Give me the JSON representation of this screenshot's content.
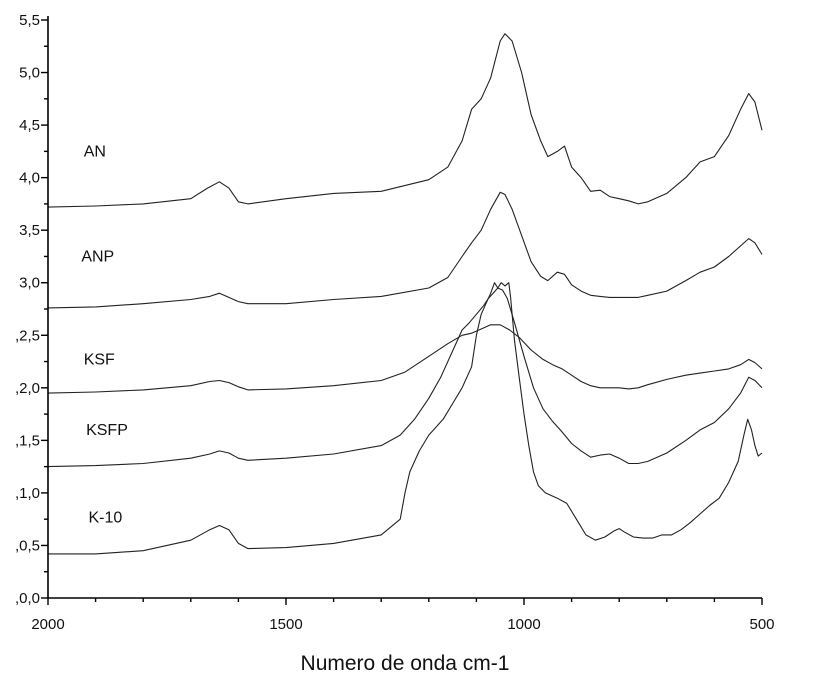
{
  "chart_data": {
    "type": "line",
    "title": "",
    "xlabel": "Numero de onda cm-1",
    "ylabel": "",
    "xlim": [
      2000,
      500
    ],
    "ylim": [
      0.0,
      5.5
    ],
    "x_ticks": [
      2000,
      1500,
      1000,
      500
    ],
    "x_tick_labels": [
      "2000",
      "1500",
      "1000",
      "500"
    ],
    "y_ticks": [
      0.0,
      0.5,
      1.0,
      1.5,
      2.0,
      2.5,
      3.0,
      3.5,
      4.0,
      4.5,
      5.0,
      5.5
    ],
    "y_tick_labels": [
      ",0,0",
      ",0,5",
      ",1,0",
      ",1,5",
      ",2,0",
      ",2,5",
      "3,0",
      "3,5",
      "4,0",
      "4,5",
      "5,0",
      "5,5"
    ],
    "series": [
      {
        "name": "AN",
        "label_pos": [
          1925,
          4.2
        ],
        "points": [
          [
            2000,
            3.72
          ],
          [
            1900,
            3.73
          ],
          [
            1800,
            3.75
          ],
          [
            1700,
            3.8
          ],
          [
            1665,
            3.9
          ],
          [
            1640,
            3.96
          ],
          [
            1620,
            3.9
          ],
          [
            1600,
            3.77
          ],
          [
            1580,
            3.75
          ],
          [
            1500,
            3.8
          ],
          [
            1400,
            3.85
          ],
          [
            1300,
            3.87
          ],
          [
            1200,
            3.98
          ],
          [
            1160,
            4.1
          ],
          [
            1130,
            4.35
          ],
          [
            1110,
            4.65
          ],
          [
            1090,
            4.75
          ],
          [
            1070,
            4.95
          ],
          [
            1050,
            5.3
          ],
          [
            1040,
            5.37
          ],
          [
            1025,
            5.3
          ],
          [
            1005,
            5.0
          ],
          [
            985,
            4.6
          ],
          [
            965,
            4.35
          ],
          [
            950,
            4.2
          ],
          [
            930,
            4.25
          ],
          [
            915,
            4.3
          ],
          [
            900,
            4.1
          ],
          [
            880,
            4.0
          ],
          [
            860,
            3.87
          ],
          [
            840,
            3.88
          ],
          [
            820,
            3.82
          ],
          [
            800,
            3.8
          ],
          [
            780,
            3.78
          ],
          [
            760,
            3.75
          ],
          [
            740,
            3.77
          ],
          [
            700,
            3.85
          ],
          [
            660,
            4.0
          ],
          [
            630,
            4.15
          ],
          [
            600,
            4.2
          ],
          [
            570,
            4.4
          ],
          [
            545,
            4.65
          ],
          [
            528,
            4.8
          ],
          [
            515,
            4.72
          ],
          [
            500,
            4.45
          ]
        ]
      },
      {
        "name": "ANP",
        "label_pos": [
          1930,
          3.2
        ],
        "points": [
          [
            2000,
            2.76
          ],
          [
            1900,
            2.77
          ],
          [
            1800,
            2.8
          ],
          [
            1700,
            2.84
          ],
          [
            1660,
            2.87
          ],
          [
            1640,
            2.9
          ],
          [
            1620,
            2.86
          ],
          [
            1600,
            2.82
          ],
          [
            1580,
            2.8
          ],
          [
            1500,
            2.8
          ],
          [
            1400,
            2.84
          ],
          [
            1300,
            2.87
          ],
          [
            1200,
            2.95
          ],
          [
            1160,
            3.05
          ],
          [
            1130,
            3.25
          ],
          [
            1110,
            3.38
          ],
          [
            1090,
            3.5
          ],
          [
            1070,
            3.7
          ],
          [
            1050,
            3.86
          ],
          [
            1040,
            3.84
          ],
          [
            1025,
            3.7
          ],
          [
            1005,
            3.45
          ],
          [
            985,
            3.2
          ],
          [
            965,
            3.06
          ],
          [
            950,
            3.02
          ],
          [
            930,
            3.1
          ],
          [
            915,
            3.08
          ],
          [
            900,
            2.98
          ],
          [
            880,
            2.92
          ],
          [
            860,
            2.88
          ],
          [
            840,
            2.87
          ],
          [
            820,
            2.86
          ],
          [
            800,
            2.86
          ],
          [
            780,
            2.86
          ],
          [
            760,
            2.86
          ],
          [
            740,
            2.88
          ],
          [
            700,
            2.92
          ],
          [
            660,
            3.02
          ],
          [
            630,
            3.1
          ],
          [
            600,
            3.15
          ],
          [
            570,
            3.25
          ],
          [
            545,
            3.35
          ],
          [
            528,
            3.42
          ],
          [
            515,
            3.38
          ],
          [
            500,
            3.27
          ]
        ]
      },
      {
        "name": "KSF",
        "label_pos": [
          1925,
          2.22
        ],
        "points": [
          [
            2000,
            1.95
          ],
          [
            1900,
            1.96
          ],
          [
            1800,
            1.98
          ],
          [
            1700,
            2.02
          ],
          [
            1660,
            2.06
          ],
          [
            1640,
            2.07
          ],
          [
            1620,
            2.05
          ],
          [
            1600,
            2.01
          ],
          [
            1580,
            1.98
          ],
          [
            1500,
            1.99
          ],
          [
            1400,
            2.02
          ],
          [
            1300,
            2.07
          ],
          [
            1250,
            2.15
          ],
          [
            1200,
            2.3
          ],
          [
            1160,
            2.42
          ],
          [
            1130,
            2.5
          ],
          [
            1110,
            2.52
          ],
          [
            1090,
            2.56
          ],
          [
            1070,
            2.6
          ],
          [
            1050,
            2.6
          ],
          [
            1030,
            2.55
          ],
          [
            1010,
            2.48
          ],
          [
            985,
            2.36
          ],
          [
            960,
            2.27
          ],
          [
            940,
            2.22
          ],
          [
            920,
            2.18
          ],
          [
            900,
            2.12
          ],
          [
            880,
            2.06
          ],
          [
            860,
            2.02
          ],
          [
            840,
            2.0
          ],
          [
            820,
            2.0
          ],
          [
            800,
            2.0
          ],
          [
            780,
            1.99
          ],
          [
            760,
            2.0
          ],
          [
            740,
            2.03
          ],
          [
            700,
            2.08
          ],
          [
            660,
            2.12
          ],
          [
            630,
            2.14
          ],
          [
            600,
            2.16
          ],
          [
            570,
            2.18
          ],
          [
            545,
            2.22
          ],
          [
            528,
            2.27
          ],
          [
            515,
            2.24
          ],
          [
            500,
            2.18
          ]
        ]
      },
      {
        "name": "KSFP",
        "label_pos": [
          1920,
          1.55
        ],
        "points": [
          [
            2000,
            1.25
          ],
          [
            1900,
            1.26
          ],
          [
            1800,
            1.28
          ],
          [
            1700,
            1.33
          ],
          [
            1660,
            1.37
          ],
          [
            1640,
            1.4
          ],
          [
            1620,
            1.38
          ],
          [
            1600,
            1.33
          ],
          [
            1580,
            1.31
          ],
          [
            1500,
            1.33
          ],
          [
            1400,
            1.37
          ],
          [
            1300,
            1.45
          ],
          [
            1260,
            1.55
          ],
          [
            1230,
            1.7
          ],
          [
            1200,
            1.9
          ],
          [
            1175,
            2.1
          ],
          [
            1150,
            2.35
          ],
          [
            1130,
            2.55
          ],
          [
            1115,
            2.62
          ],
          [
            1100,
            2.7
          ],
          [
            1085,
            2.78
          ],
          [
            1075,
            2.85
          ],
          [
            1065,
            2.9
          ],
          [
            1055,
            2.95
          ],
          [
            1045,
            2.93
          ],
          [
            1035,
            2.85
          ],
          [
            1020,
            2.62
          ],
          [
            1000,
            2.3
          ],
          [
            980,
            2.0
          ],
          [
            960,
            1.8
          ],
          [
            940,
            1.68
          ],
          [
            920,
            1.58
          ],
          [
            900,
            1.47
          ],
          [
            880,
            1.4
          ],
          [
            860,
            1.34
          ],
          [
            840,
            1.36
          ],
          [
            820,
            1.37
          ],
          [
            800,
            1.33
          ],
          [
            780,
            1.28
          ],
          [
            760,
            1.28
          ],
          [
            740,
            1.3
          ],
          [
            700,
            1.38
          ],
          [
            660,
            1.5
          ],
          [
            630,
            1.6
          ],
          [
            600,
            1.67
          ],
          [
            570,
            1.8
          ],
          [
            545,
            1.95
          ],
          [
            528,
            2.1
          ],
          [
            515,
            2.07
          ],
          [
            500,
            2.0
          ]
        ]
      },
      {
        "name": "K-10",
        "label_pos": [
          1915,
          0.72
        ],
        "points": [
          [
            2000,
            0.42
          ],
          [
            1900,
            0.42
          ],
          [
            1800,
            0.45
          ],
          [
            1700,
            0.55
          ],
          [
            1660,
            0.65
          ],
          [
            1640,
            0.69
          ],
          [
            1620,
            0.65
          ],
          [
            1600,
            0.52
          ],
          [
            1580,
            0.47
          ],
          [
            1500,
            0.48
          ],
          [
            1400,
            0.52
          ],
          [
            1300,
            0.6
          ],
          [
            1260,
            0.75
          ],
          [
            1250,
            1.0
          ],
          [
            1240,
            1.2
          ],
          [
            1220,
            1.4
          ],
          [
            1200,
            1.55
          ],
          [
            1170,
            1.7
          ],
          [
            1150,
            1.85
          ],
          [
            1130,
            2.0
          ],
          [
            1110,
            2.2
          ],
          [
            1100,
            2.5
          ],
          [
            1090,
            2.7
          ],
          [
            1080,
            2.8
          ],
          [
            1070,
            2.9
          ],
          [
            1062,
            3.0
          ],
          [
            1055,
            2.95
          ],
          [
            1048,
            3.0
          ],
          [
            1040,
            2.97
          ],
          [
            1032,
            3.0
          ],
          [
            1028,
            2.85
          ],
          [
            1020,
            2.45
          ],
          [
            1010,
            2.1
          ],
          [
            1000,
            1.75
          ],
          [
            990,
            1.45
          ],
          [
            980,
            1.2
          ],
          [
            970,
            1.07
          ],
          [
            955,
            1.0
          ],
          [
            930,
            0.95
          ],
          [
            910,
            0.9
          ],
          [
            890,
            0.75
          ],
          [
            870,
            0.6
          ],
          [
            850,
            0.55
          ],
          [
            830,
            0.58
          ],
          [
            810,
            0.64
          ],
          [
            800,
            0.66
          ],
          [
            790,
            0.63
          ],
          [
            770,
            0.58
          ],
          [
            750,
            0.57
          ],
          [
            730,
            0.57
          ],
          [
            710,
            0.6
          ],
          [
            690,
            0.6
          ],
          [
            670,
            0.65
          ],
          [
            650,
            0.72
          ],
          [
            630,
            0.8
          ],
          [
            610,
            0.88
          ],
          [
            590,
            0.95
          ],
          [
            570,
            1.1
          ],
          [
            550,
            1.3
          ],
          [
            538,
            1.55
          ],
          [
            530,
            1.7
          ],
          [
            522,
            1.6
          ],
          [
            515,
            1.45
          ],
          [
            508,
            1.35
          ],
          [
            500,
            1.38
          ]
        ]
      }
    ]
  }
}
